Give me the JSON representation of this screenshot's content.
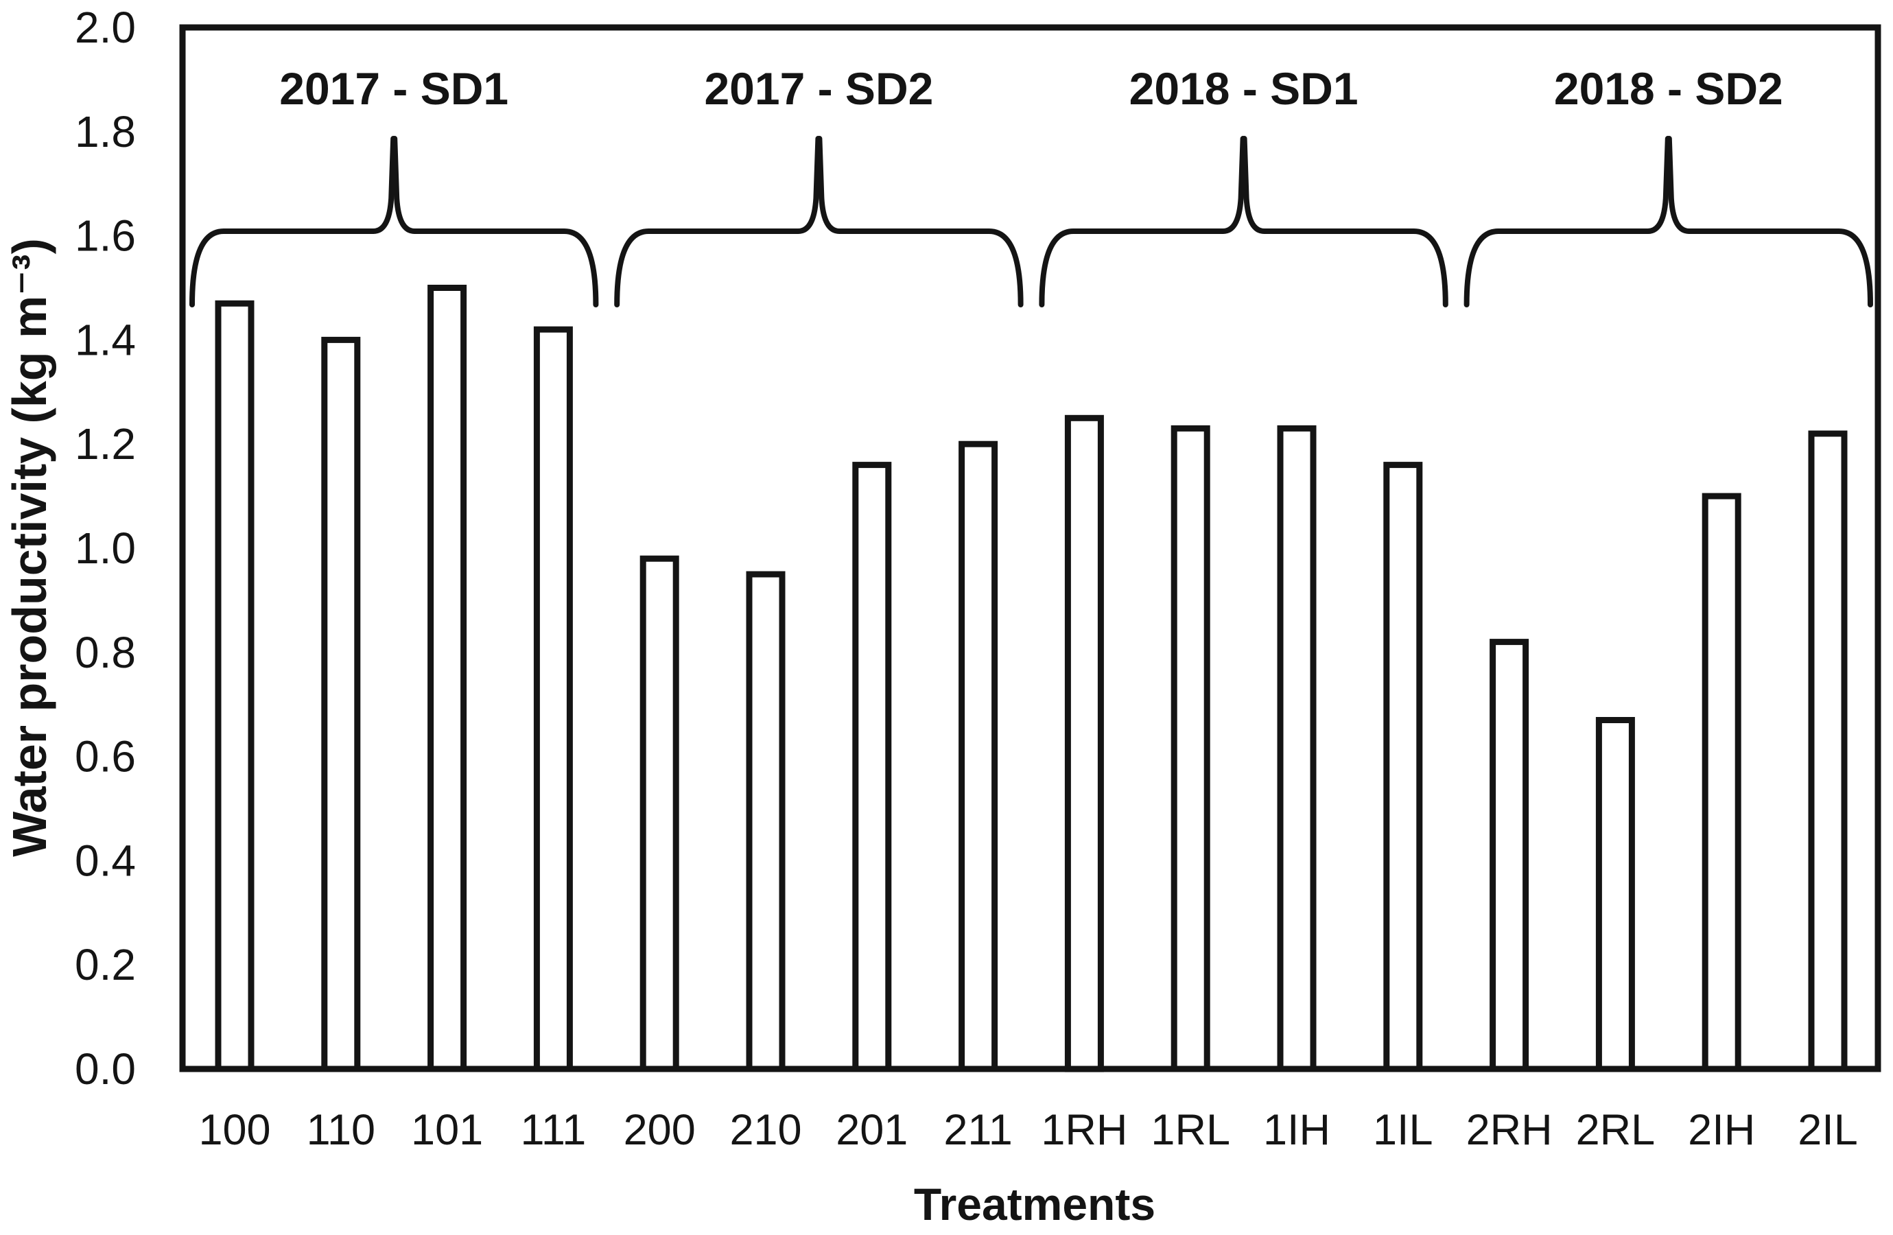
{
  "figure": {
    "background": "#ffffff",
    "ink": "#141414"
  },
  "chart_data": {
    "type": "bar",
    "title": "",
    "xlabel": "Treatments",
    "ylabel": "Water productivity (kg m⁻³)",
    "categories": [
      "100",
      "110",
      "101",
      "111",
      "200",
      "210",
      "201",
      "211",
      "1RH",
      "1RL",
      "1IH",
      "1IL",
      "2RH",
      "2RL",
      "2IH",
      "2IL"
    ],
    "values": [
      1.47,
      1.4,
      1.5,
      1.42,
      0.98,
      0.95,
      1.16,
      1.2,
      1.25,
      1.23,
      1.23,
      1.16,
      0.82,
      0.67,
      1.1,
      1.22
    ],
    "groups": [
      {
        "label": "2017 - SD1",
        "start_index": 0,
        "end_index": 3
      },
      {
        "label": "2017 - SD2",
        "start_index": 4,
        "end_index": 7
      },
      {
        "label": "2018 - SD1",
        "start_index": 8,
        "end_index": 11
      },
      {
        "label": "2018 - SD2",
        "start_index": 12,
        "end_index": 15
      }
    ],
    "ylim": [
      0.0,
      2.0
    ],
    "ytick_step": 0.2,
    "ytick_labels": [
      "0.0",
      "0.2",
      "0.4",
      "0.6",
      "0.8",
      "1.0",
      "1.2",
      "1.4",
      "1.6",
      "1.8",
      "2.0"
    ],
    "bar_fill": "#ffffff",
    "bar_stroke": "#141414",
    "grid": false,
    "legend": "none"
  }
}
